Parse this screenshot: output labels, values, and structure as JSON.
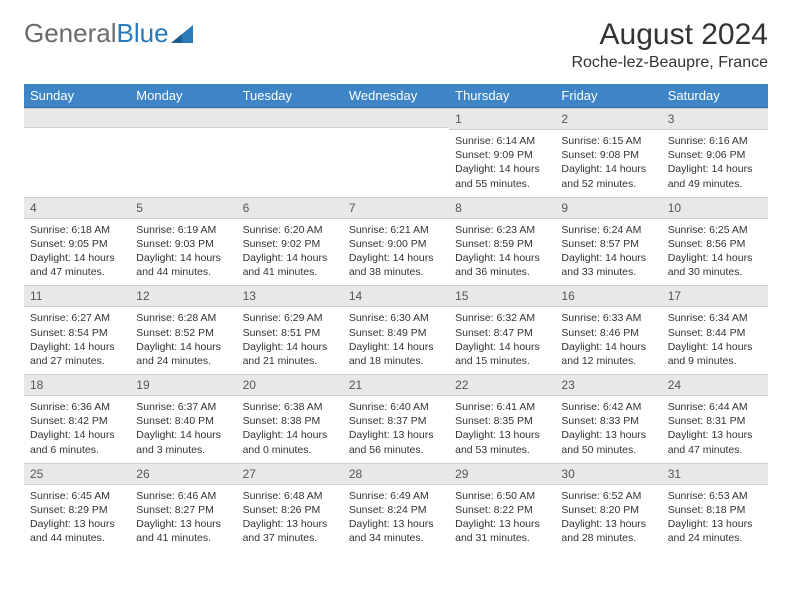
{
  "brand": {
    "name_a": "General",
    "name_b": "Blue"
  },
  "title": "August 2024",
  "location": "Roche-lez-Beaupre, France",
  "colors": {
    "header_bg": "#3d85c6",
    "header_text": "#ffffff",
    "daynum_bg": "#e8e8e8",
    "daynum_text": "#555555",
    "body_bg": "#ffffff",
    "logo_gray": "#6b6b6b",
    "logo_blue": "#2a7ab9"
  },
  "day_headers": [
    "Sunday",
    "Monday",
    "Tuesday",
    "Wednesday",
    "Thursday",
    "Friday",
    "Saturday"
  ],
  "weeks": [
    [
      null,
      null,
      null,
      null,
      {
        "n": "1",
        "sunrise": "6:14 AM",
        "sunset": "9:09 PM",
        "daylight": "14 hours and 55 minutes."
      },
      {
        "n": "2",
        "sunrise": "6:15 AM",
        "sunset": "9:08 PM",
        "daylight": "14 hours and 52 minutes."
      },
      {
        "n": "3",
        "sunrise": "6:16 AM",
        "sunset": "9:06 PM",
        "daylight": "14 hours and 49 minutes."
      }
    ],
    [
      {
        "n": "4",
        "sunrise": "6:18 AM",
        "sunset": "9:05 PM",
        "daylight": "14 hours and 47 minutes."
      },
      {
        "n": "5",
        "sunrise": "6:19 AM",
        "sunset": "9:03 PM",
        "daylight": "14 hours and 44 minutes."
      },
      {
        "n": "6",
        "sunrise": "6:20 AM",
        "sunset": "9:02 PM",
        "daylight": "14 hours and 41 minutes."
      },
      {
        "n": "7",
        "sunrise": "6:21 AM",
        "sunset": "9:00 PM",
        "daylight": "14 hours and 38 minutes."
      },
      {
        "n": "8",
        "sunrise": "6:23 AM",
        "sunset": "8:59 PM",
        "daylight": "14 hours and 36 minutes."
      },
      {
        "n": "9",
        "sunrise": "6:24 AM",
        "sunset": "8:57 PM",
        "daylight": "14 hours and 33 minutes."
      },
      {
        "n": "10",
        "sunrise": "6:25 AM",
        "sunset": "8:56 PM",
        "daylight": "14 hours and 30 minutes."
      }
    ],
    [
      {
        "n": "11",
        "sunrise": "6:27 AM",
        "sunset": "8:54 PM",
        "daylight": "14 hours and 27 minutes."
      },
      {
        "n": "12",
        "sunrise": "6:28 AM",
        "sunset": "8:52 PM",
        "daylight": "14 hours and 24 minutes."
      },
      {
        "n": "13",
        "sunrise": "6:29 AM",
        "sunset": "8:51 PM",
        "daylight": "14 hours and 21 minutes."
      },
      {
        "n": "14",
        "sunrise": "6:30 AM",
        "sunset": "8:49 PM",
        "daylight": "14 hours and 18 minutes."
      },
      {
        "n": "15",
        "sunrise": "6:32 AM",
        "sunset": "8:47 PM",
        "daylight": "14 hours and 15 minutes."
      },
      {
        "n": "16",
        "sunrise": "6:33 AM",
        "sunset": "8:46 PM",
        "daylight": "14 hours and 12 minutes."
      },
      {
        "n": "17",
        "sunrise": "6:34 AM",
        "sunset": "8:44 PM",
        "daylight": "14 hours and 9 minutes."
      }
    ],
    [
      {
        "n": "18",
        "sunrise": "6:36 AM",
        "sunset": "8:42 PM",
        "daylight": "14 hours and 6 minutes."
      },
      {
        "n": "19",
        "sunrise": "6:37 AM",
        "sunset": "8:40 PM",
        "daylight": "14 hours and 3 minutes."
      },
      {
        "n": "20",
        "sunrise": "6:38 AM",
        "sunset": "8:38 PM",
        "daylight": "14 hours and 0 minutes."
      },
      {
        "n": "21",
        "sunrise": "6:40 AM",
        "sunset": "8:37 PM",
        "daylight": "13 hours and 56 minutes."
      },
      {
        "n": "22",
        "sunrise": "6:41 AM",
        "sunset": "8:35 PM",
        "daylight": "13 hours and 53 minutes."
      },
      {
        "n": "23",
        "sunrise": "6:42 AM",
        "sunset": "8:33 PM",
        "daylight": "13 hours and 50 minutes."
      },
      {
        "n": "24",
        "sunrise": "6:44 AM",
        "sunset": "8:31 PM",
        "daylight": "13 hours and 47 minutes."
      }
    ],
    [
      {
        "n": "25",
        "sunrise": "6:45 AM",
        "sunset": "8:29 PM",
        "daylight": "13 hours and 44 minutes."
      },
      {
        "n": "26",
        "sunrise": "6:46 AM",
        "sunset": "8:27 PM",
        "daylight": "13 hours and 41 minutes."
      },
      {
        "n": "27",
        "sunrise": "6:48 AM",
        "sunset": "8:26 PM",
        "daylight": "13 hours and 37 minutes."
      },
      {
        "n": "28",
        "sunrise": "6:49 AM",
        "sunset": "8:24 PM",
        "daylight": "13 hours and 34 minutes."
      },
      {
        "n": "29",
        "sunrise": "6:50 AM",
        "sunset": "8:22 PM",
        "daylight": "13 hours and 31 minutes."
      },
      {
        "n": "30",
        "sunrise": "6:52 AM",
        "sunset": "8:20 PM",
        "daylight": "13 hours and 28 minutes."
      },
      {
        "n": "31",
        "sunrise": "6:53 AM",
        "sunset": "8:18 PM",
        "daylight": "13 hours and 24 minutes."
      }
    ]
  ],
  "labels": {
    "sunrise": "Sunrise: ",
    "sunset": "Sunset: ",
    "daylight": "Daylight: "
  }
}
